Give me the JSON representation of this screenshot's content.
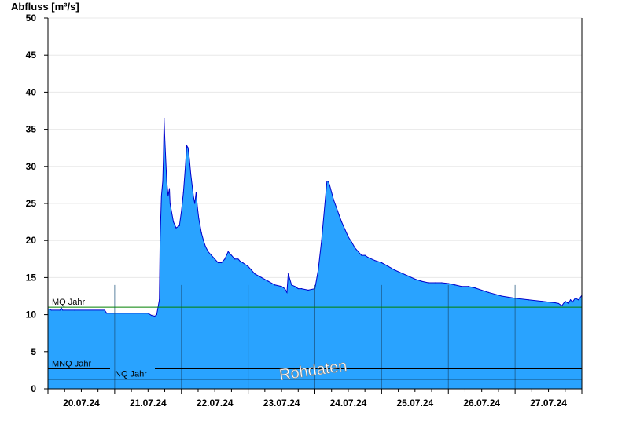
{
  "chart_data": {
    "type": "area",
    "ylabel": "Abfluss [m³/s]",
    "ylim": [
      0,
      50
    ],
    "yticks": [
      0,
      5,
      10,
      15,
      20,
      25,
      30,
      35,
      40,
      45,
      50
    ],
    "xlim_days": [
      0,
      8
    ],
    "day_labels": [
      "20.07.24",
      "21.07.24",
      "22.07.24",
      "23.07.24",
      "24.07.24",
      "25.07.24",
      "26.07.24",
      "27.07.24"
    ],
    "series": [
      {
        "fill_color": "#29a3ff",
        "line_color": "#0000cc",
        "x_days": [
          0.0,
          0.05,
          0.18,
          0.2,
          0.22,
          0.4,
          0.85,
          0.88,
          1.5,
          1.55,
          1.6,
          1.63,
          1.67,
          1.68,
          1.7,
          1.72,
          1.73,
          1.74,
          1.75,
          1.78,
          1.8,
          1.82,
          1.83,
          1.85,
          1.88,
          1.92,
          1.97,
          2.0,
          2.03,
          2.06,
          2.08,
          2.1,
          2.12,
          2.14,
          2.16,
          2.18,
          2.2,
          2.22,
          2.24,
          2.26,
          2.28,
          2.3,
          2.33,
          2.36,
          2.4,
          2.45,
          2.5,
          2.55,
          2.6,
          2.65,
          2.7,
          2.75,
          2.8,
          2.85,
          2.88,
          2.92,
          2.95,
          3.0,
          3.05,
          3.1,
          3.2,
          3.3,
          3.4,
          3.5,
          3.55,
          3.58,
          3.6,
          3.65,
          3.7,
          3.75,
          3.8,
          3.9,
          4.0,
          4.05,
          4.1,
          4.14,
          4.18,
          4.2,
          4.22,
          4.25,
          4.28,
          4.32,
          4.36,
          4.4,
          4.45,
          4.5,
          4.55,
          4.6,
          4.65,
          4.7,
          4.75,
          4.8,
          4.9,
          5.0,
          5.1,
          5.2,
          5.3,
          5.4,
          5.5,
          5.6,
          5.7,
          5.8,
          5.9,
          6.0,
          6.1,
          6.2,
          6.3,
          6.4,
          6.6,
          6.8,
          7.0,
          7.2,
          7.4,
          7.5,
          7.6,
          7.65,
          7.7,
          7.75,
          7.8,
          7.83,
          7.86,
          7.9,
          7.95,
          8.0
        ],
        "values": [
          10.8,
          10.6,
          10.6,
          10.9,
          10.6,
          10.6,
          10.6,
          10.2,
          10.2,
          9.9,
          9.8,
          10.0,
          12.0,
          20.0,
          26.0,
          28.0,
          31.0,
          36.5,
          34.0,
          28.0,
          26.0,
          27.0,
          25.0,
          24.0,
          22.5,
          21.7,
          22.0,
          24.0,
          26.5,
          30.0,
          32.8,
          32.5,
          31.0,
          29.0,
          27.5,
          26.0,
          25.0,
          26.5,
          24.5,
          23.0,
          22.0,
          21.0,
          20.0,
          19.2,
          18.5,
          18.0,
          17.5,
          17.0,
          17.0,
          17.5,
          18.5,
          18.0,
          17.5,
          17.5,
          17.2,
          17.0,
          16.8,
          16.5,
          16.0,
          15.5,
          15.0,
          14.5,
          14.0,
          13.8,
          13.5,
          13.0,
          15.5,
          14.0,
          13.8,
          13.5,
          13.5,
          13.3,
          13.5,
          16.0,
          20.0,
          24.0,
          28.0,
          28.0,
          27.5,
          26.5,
          25.5,
          24.5,
          23.5,
          22.5,
          21.5,
          20.5,
          19.8,
          19.0,
          18.5,
          18.0,
          18.0,
          17.7,
          17.3,
          17.0,
          16.5,
          16.0,
          15.6,
          15.2,
          14.8,
          14.5,
          14.3,
          14.3,
          14.3,
          14.2,
          14.0,
          13.8,
          13.8,
          13.6,
          13.0,
          12.5,
          12.2,
          12.0,
          11.8,
          11.7,
          11.6,
          11.5,
          11.2,
          11.8,
          11.5,
          12.0,
          11.7,
          12.2,
          12.0,
          12.6
        ]
      }
    ],
    "reference_lines": [
      {
        "label": "MQ Jahr",
        "value": 11.0,
        "color": "#008000"
      },
      {
        "label": "MNQ Jahr",
        "value": 2.7,
        "color": "#000000"
      },
      {
        "label": "NQ Jahr",
        "value": 1.3,
        "color": "#000000"
      }
    ],
    "watermark": "Rohdaten",
    "grid": true
  }
}
